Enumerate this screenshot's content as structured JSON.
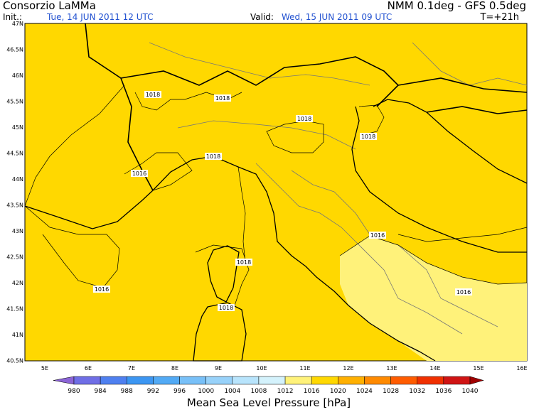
{
  "header": {
    "source": "Consorzio LaMMa",
    "model": "NMM 0.1deg - GFS 0.5deg",
    "init_label": "Init.:",
    "init_time": "Tue, 14 JUN 2011  12 UTC",
    "valid_label": "Valid:",
    "valid_time": "Wed, 15 JUN 2011  09 UTC",
    "lead": "T=+21h"
  },
  "map": {
    "lat_labels": [
      "47N",
      "46.5N",
      "46N",
      "45.5N",
      "45N",
      "44.5N",
      "44N",
      "43.5N",
      "43N",
      "42.5N",
      "42N",
      "41.5N",
      "41N",
      "40.5N"
    ],
    "lon_labels": [
      "5E",
      "6E",
      "7E",
      "8E",
      "9E",
      "10E",
      "11E",
      "12E",
      "13E",
      "14E",
      "15E",
      "16E"
    ],
    "contour_labels": [
      "1018",
      "1018",
      "1018",
      "1018",
      "1016",
      "1018",
      "1016",
      "1018",
      "1016",
      "1018",
      "1016"
    ]
  },
  "colorbar": {
    "labels": [
      980,
      984,
      988,
      992,
      996,
      1000,
      1004,
      1008,
      1012,
      1016,
      1020,
      1024,
      1028,
      1032,
      1036,
      1040
    ],
    "colors": [
      "#8b64d6",
      "#6f6ee6",
      "#4f80f0",
      "#3c96f2",
      "#52aaf5",
      "#78c0f8",
      "#98d2fa",
      "#b8e4fc",
      "#d4f2fc",
      "#fff27a",
      "#ffd800",
      "#ffb000",
      "#ff8a00",
      "#ff5c00",
      "#f03000",
      "#d01414",
      "#a00000"
    ],
    "title": "Mean Sea Level Pressure [hPa]"
  }
}
